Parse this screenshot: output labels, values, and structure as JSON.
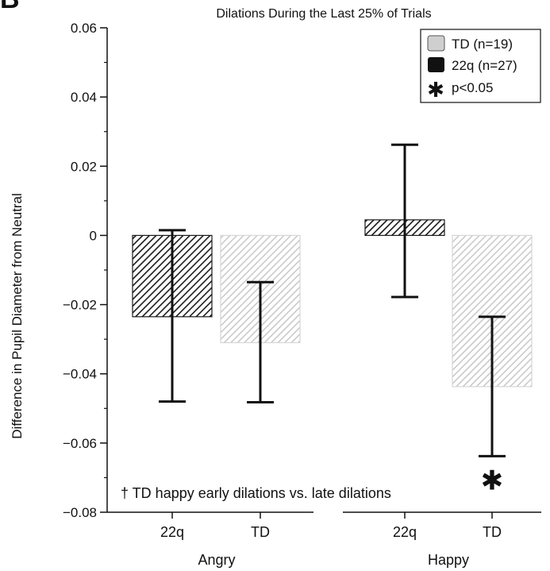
{
  "panel_letter": "B",
  "chart_data": {
    "type": "bar",
    "title": "Dilations During the Last 25% of Trials",
    "ylabel": "Difference in Pupil Diameter from Neutral",
    "xlabel": "",
    "ylim": [
      -0.08,
      0.06
    ],
    "yticks": [
      0.06,
      0.04,
      0.02,
      0,
      -0.02,
      -0.04,
      -0.06,
      -0.08
    ],
    "ytick_labels": [
      "0.06",
      "0.04",
      "0.02",
      "0",
      "−0.02",
      "−0.04",
      "−0.06",
      "−0.08"
    ],
    "grid": false,
    "legend_position": "top-right",
    "legend": [
      {
        "label": "TD (n=19)",
        "swatch": "light"
      },
      {
        "label": "22q (n=27)",
        "swatch": "dark"
      },
      {
        "label": "p<0.05",
        "swatch": "star"
      }
    ],
    "groups": [
      {
        "name": "Angry",
        "bars": [
          {
            "category": "22q",
            "series": "22q",
            "value": -0.0235,
            "err_low": -0.048,
            "err_high": 0.0015,
            "sig": false
          },
          {
            "category": "TD",
            "series": "TD",
            "value": -0.031,
            "err_low": -0.0482,
            "err_high": -0.0135,
            "sig": false
          }
        ]
      },
      {
        "name": "Happy",
        "bars": [
          {
            "category": "22q",
            "series": "22q",
            "value": 0.0045,
            "err_low": -0.0178,
            "err_high": 0.0262,
            "sig": false
          },
          {
            "category": "TD",
            "series": "TD",
            "value": -0.0437,
            "err_low": -0.0638,
            "err_high": -0.0235,
            "sig": true
          }
        ]
      }
    ],
    "annotation": "† TD happy early dilations vs. late dilations",
    "sig_marker": "★",
    "colors": {
      "dark": "#1a1a1a",
      "light": "#c8c8c8",
      "axis": "#111111"
    }
  }
}
